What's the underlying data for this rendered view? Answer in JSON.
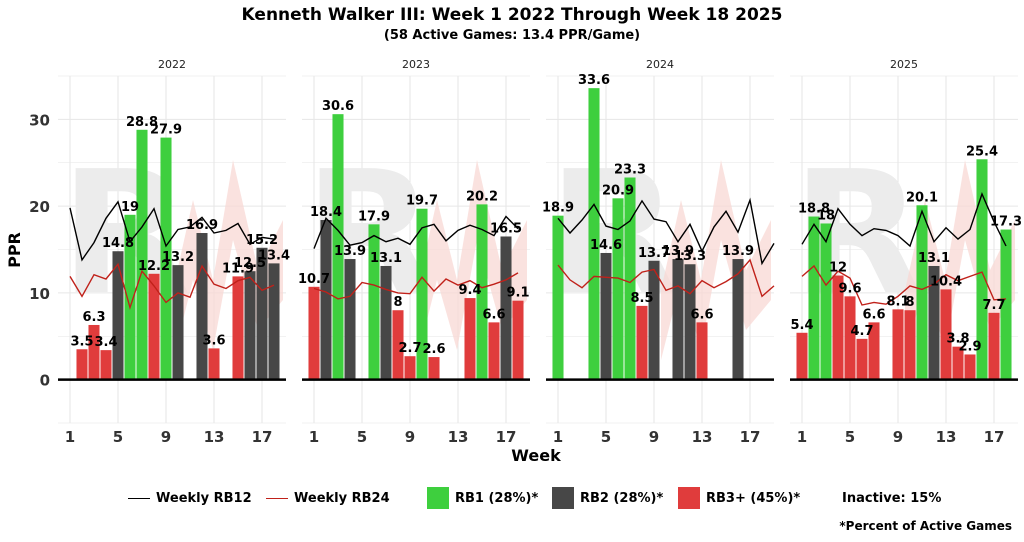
{
  "title": "Kenneth Walker III: Week 1 2022 Through Week 18 2025",
  "subtitle": "(58 Active Games: 13.4 PPR/Game)",
  "footnote": "*Percent of Active Games",
  "colors": {
    "rb1": "#3ecf3e",
    "rb2": "#474747",
    "rb3": "#e03c3c",
    "rb12_line": "#000000",
    "rb24_line": "#c0211a",
    "panel_bg": "#ffffff",
    "grid": "#e6e6e6",
    "watermark_r": "#ececec",
    "watermark_zig": "#f8d8d4"
  },
  "legend": {
    "rb12": "Weekly RB12",
    "rb24": "Weekly RB24",
    "rb1": "RB1 (28%)*",
    "rb2": "RB2 (28%)*",
    "rb3": "RB3+ (45%)*",
    "inactive": "Inactive: 15%"
  },
  "chart_data": {
    "type": "bar",
    "xlabel": "Week",
    "ylabel": "PPR",
    "ylim": [
      -5,
      35
    ],
    "xlim": [
      0,
      19
    ],
    "y_ticks": [
      0,
      10,
      20,
      30
    ],
    "x_ticks": [
      1,
      5,
      9,
      13,
      17
    ],
    "panels": [
      {
        "label": "2022",
        "bars": [
          {
            "week": 2,
            "value": 3.5,
            "tier": "rb3"
          },
          {
            "week": 3,
            "value": 6.3,
            "tier": "rb3"
          },
          {
            "week": 4,
            "value": 3.4,
            "tier": "rb3"
          },
          {
            "week": 5,
            "value": 14.8,
            "tier": "rb2"
          },
          {
            "week": 6,
            "value": 19,
            "tier": "rb1"
          },
          {
            "week": 7,
            "value": 28.8,
            "tier": "rb1"
          },
          {
            "week": 8,
            "value": 12.2,
            "tier": "rb3"
          },
          {
            "week": 9,
            "value": 27.9,
            "tier": "rb1"
          },
          {
            "week": 10,
            "value": 13.2,
            "tier": "rb2"
          },
          {
            "week": 12,
            "value": 16.9,
            "tier": "rb2"
          },
          {
            "week": 13,
            "value": 3.6,
            "tier": "rb3"
          },
          {
            "week": 15,
            "value": 11.9,
            "tier": "rb3"
          },
          {
            "week": 16,
            "value": 12.5,
            "tier": "rb2"
          },
          {
            "week": 17,
            "value": 15.2,
            "tier": "rb2"
          },
          {
            "week": 18,
            "value": 13.4,
            "tier": "rb2"
          }
        ],
        "rb12": [
          19.8,
          13.8,
          15.8,
          18.6,
          20.5,
          15.9,
          17.6,
          19.7,
          15.4,
          17.3,
          17.6,
          18.7,
          16.9,
          17.2,
          18.0,
          15.6,
          16.4,
          16.2
        ],
        "rb24": [
          11.9,
          9.6,
          12.1,
          11.6,
          13.3,
          8.3,
          12.5,
          10.8,
          8.9,
          10.0,
          9.5,
          13.1,
          11.0,
          10.5,
          11.4,
          11.8,
          10.3,
          10.9
        ]
      },
      {
        "label": "2023",
        "bars": [
          {
            "week": 1,
            "value": 10.7,
            "tier": "rb3"
          },
          {
            "week": 2,
            "value": 18.4,
            "tier": "rb2"
          },
          {
            "week": 3,
            "value": 30.6,
            "tier": "rb1"
          },
          {
            "week": 4,
            "value": 13.9,
            "tier": "rb2"
          },
          {
            "week": 6,
            "value": 17.9,
            "tier": "rb1"
          },
          {
            "week": 7,
            "value": 13.1,
            "tier": "rb2"
          },
          {
            "week": 8,
            "value": 8,
            "tier": "rb3"
          },
          {
            "week": 9,
            "value": 2.7,
            "tier": "rb3"
          },
          {
            "week": 10,
            "value": 19.7,
            "tier": "rb1"
          },
          {
            "week": 11,
            "value": 2.6,
            "tier": "rb3"
          },
          {
            "week": 14,
            "value": 9.4,
            "tier": "rb3"
          },
          {
            "week": 15,
            "value": 20.2,
            "tier": "rb1"
          },
          {
            "week": 16,
            "value": 6.6,
            "tier": "rb3"
          },
          {
            "week": 17,
            "value": 16.5,
            "tier": "rb2"
          },
          {
            "week": 18,
            "value": 9.1,
            "tier": "rb3"
          }
        ],
        "rb12": [
          15.1,
          18.6,
          17.2,
          15.5,
          15.8,
          16.6,
          15.9,
          16.3,
          15.6,
          17.5,
          17.9,
          16.0,
          17.2,
          17.8,
          17.3,
          16.6,
          18.8,
          17.4
        ],
        "rb24": [
          10.5,
          10.1,
          9.3,
          9.6,
          11.2,
          10.9,
          10.4,
          10.0,
          9.9,
          11.8,
          10.2,
          11.6,
          10.9,
          11.4,
          10.6,
          11.0,
          11.5,
          12.3
        ]
      },
      {
        "label": "2024",
        "bars": [
          {
            "week": 1,
            "value": 18.9,
            "tier": "rb1"
          },
          {
            "week": 4,
            "value": 33.6,
            "tier": "rb1"
          },
          {
            "week": 5,
            "value": 14.6,
            "tier": "rb2"
          },
          {
            "week": 6,
            "value": 20.9,
            "tier": "rb1"
          },
          {
            "week": 7,
            "value": 23.3,
            "tier": "rb1"
          },
          {
            "week": 8,
            "value": 8.5,
            "tier": "rb3"
          },
          {
            "week": 9,
            "value": 13.7,
            "tier": "rb2"
          },
          {
            "week": 11,
            "value": 13.9,
            "tier": "rb2"
          },
          {
            "week": 12,
            "value": 13.3,
            "tier": "rb2"
          },
          {
            "week": 13,
            "value": 6.6,
            "tier": "rb3"
          },
          {
            "week": 16,
            "value": 13.9,
            "tier": "rb2"
          }
        ],
        "rb12": [
          18.6,
          16.9,
          18.4,
          20.2,
          17.7,
          17.3,
          18.3,
          20.6,
          18.5,
          18.2,
          15.9,
          17.9,
          14.8,
          17.6,
          19.4,
          17.0,
          20.7,
          13.4,
          15.7
        ],
        "rb24": [
          13.2,
          11.5,
          10.6,
          11.9,
          11.8,
          11.7,
          11.2,
          12.4,
          12.7,
          10.3,
          10.8,
          9.9,
          11.4,
          10.6,
          11.3,
          12.2,
          13.8,
          9.6,
          10.8
        ]
      },
      {
        "label": "2025",
        "bars": [
          {
            "week": 1,
            "value": 5.4,
            "tier": "rb3"
          },
          {
            "week": 2,
            "value": 18.8,
            "tier": "rb1"
          },
          {
            "week": 3,
            "value": 18,
            "tier": "rb1"
          },
          {
            "week": 4,
            "value": 12,
            "tier": "rb3"
          },
          {
            "week": 5,
            "value": 9.6,
            "tier": "rb3"
          },
          {
            "week": 6,
            "value": 4.7,
            "tier": "rb3"
          },
          {
            "week": 7,
            "value": 6.6,
            "tier": "rb3"
          },
          {
            "week": 9,
            "value": 8.1,
            "tier": "rb3"
          },
          {
            "week": 10,
            "value": 8,
            "tier": "rb3"
          },
          {
            "week": 11,
            "value": 20.1,
            "tier": "rb1"
          },
          {
            "week": 12,
            "value": 13.1,
            "tier": "rb2"
          },
          {
            "week": 13,
            "value": 10.4,
            "tier": "rb3"
          },
          {
            "week": 14,
            "value": 3.8,
            "tier": "rb3"
          },
          {
            "week": 15,
            "value": 2.9,
            "tier": "rb3"
          },
          {
            "week": 16,
            "value": 25.4,
            "tier": "rb1"
          },
          {
            "week": 17,
            "value": 7.7,
            "tier": "rb3"
          },
          {
            "week": 18,
            "value": 17.3,
            "tier": "rb1"
          }
        ],
        "rb12": [
          15.6,
          17.9,
          15.9,
          19.7,
          17.9,
          16.6,
          17.4,
          17.2,
          16.6,
          15.4,
          19.4,
          15.9,
          17.5,
          16.2,
          17.3,
          21.4,
          18.2,
          15.4
        ],
        "rb24": [
          11.9,
          13.1,
          10.9,
          12.5,
          11.7,
          8.6,
          8.9,
          8.7,
          9.6,
          10.8,
          10.4,
          11.0,
          12.1,
          11.4,
          11.9,
          12.4,
          9.2,
          9.3
        ]
      }
    ]
  }
}
